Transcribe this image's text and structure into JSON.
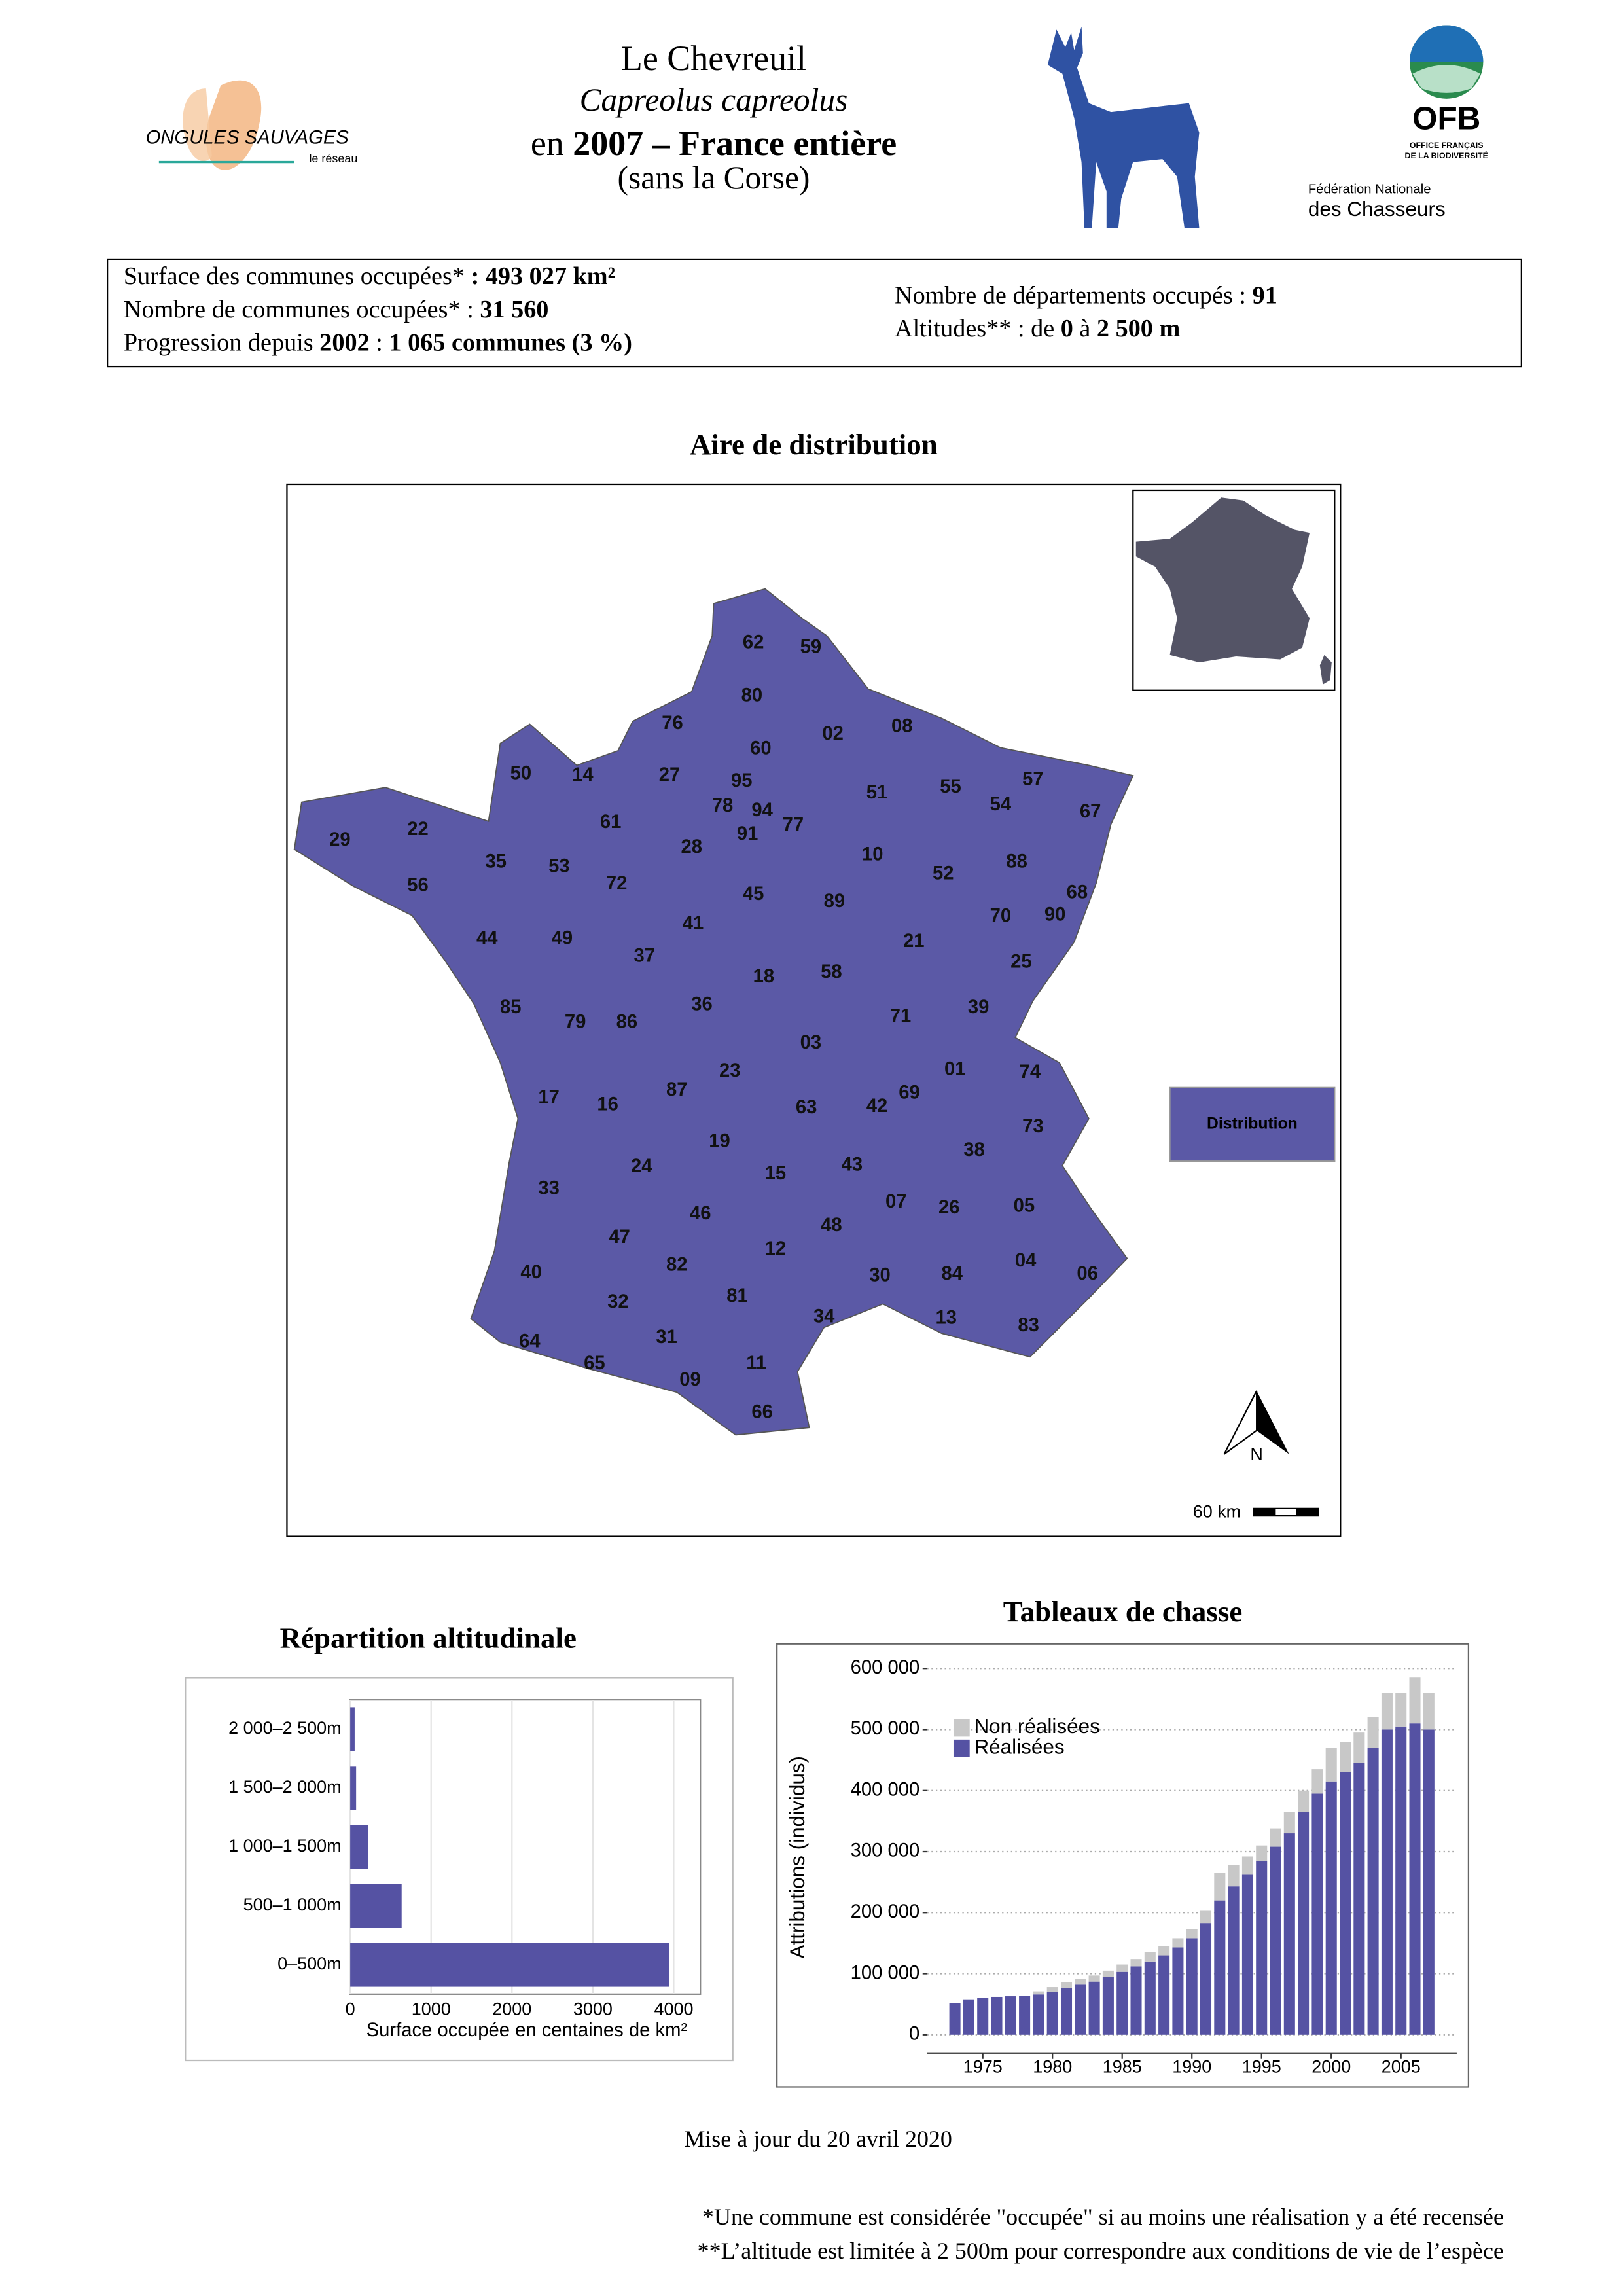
{
  "header": {
    "title": "Le Chevreuil",
    "species": "Capreolus capreolus",
    "line3": [
      {
        "text": "en ",
        "bold": false
      },
      {
        "text": "2007 – France entière",
        "bold": true
      }
    ],
    "subtitle": "(sans la Corse)",
    "logo_left": "ONGULES SAUVAGES",
    "logo_left_sub": "le réseau",
    "logo_ofb": "OFB",
    "logo_ofb_sub1": "OFFICE FRANÇAIS",
    "logo_ofb_sub2": "DE LA BIODIVERSITÉ",
    "logo_fnc1": "Fédération Nationale",
    "logo_fnc2": "des Chasseurs"
  },
  "info": {
    "left": [
      [
        {
          "text": "Surface des communes occupées* ",
          "bold": false
        },
        {
          "text": ": 493 027 km²",
          "bold": true
        }
      ],
      [
        {
          "text": "Nombre de communes occupées* : ",
          "bold": false
        },
        {
          "text": "31 560",
          "bold": true
        }
      ],
      [
        {
          "text": "Progression depuis ",
          "bold": false
        },
        {
          "text": "2002",
          "bold": true
        },
        {
          "text": " : ",
          "bold": false
        },
        {
          "text": "1 065 communes (3 %)",
          "bold": true
        }
      ]
    ],
    "right": [
      [
        {
          "text": "Nombre de départements occupés : ",
          "bold": false
        },
        {
          "text": "91",
          "bold": true
        }
      ],
      [
        {
          "text": "Altitudes** : de ",
          "bold": false
        },
        {
          "text": "0",
          "bold": true
        },
        {
          "text": " à ",
          "bold": false
        },
        {
          "text": "2 500 m",
          "bold": true
        }
      ]
    ]
  },
  "map": {
    "title": "Aire de distribution",
    "legend": "Distribution",
    "color": "#5b59a6",
    "north": "N",
    "scale": "60 km",
    "departments": [
      "62",
      "59",
      "80",
      "76",
      "02",
      "08",
      "60",
      "50",
      "14",
      "27",
      "95",
      "51",
      "55",
      "57",
      "54",
      "67",
      "78",
      "94",
      "77",
      "91",
      "61",
      "29",
      "22",
      "35",
      "53",
      "28",
      "10",
      "52",
      "88",
      "56",
      "72",
      "45",
      "89",
      "68",
      "70",
      "90",
      "41",
      "44",
      "49",
      "21",
      "37",
      "25",
      "18",
      "58",
      "85",
      "79",
      "86",
      "36",
      "71",
      "39",
      "03",
      "01",
      "74",
      "23",
      "87",
      "17",
      "16",
      "69",
      "63",
      "42",
      "73",
      "19",
      "38",
      "24",
      "15",
      "43",
      "07",
      "26",
      "05",
      "46",
      "48",
      "33",
      "47",
      "12",
      "82",
      "30",
      "84",
      "04",
      "06",
      "40",
      "32",
      "81",
      "34",
      "13",
      "83",
      "64",
      "31",
      "65",
      "09",
      "11",
      "66"
    ]
  },
  "chart_data": [
    {
      "type": "barh",
      "title": "Répartition altitudinale",
      "x_label": "Surface occupée en centaines de km²",
      "categories": [
        "0–500m",
        "500–1 000m",
        "1 000–1 500m",
        "1 500–2 000m",
        "2 000–2 500m"
      ],
      "values": [
        3945,
        636,
        218,
        73,
        55
      ],
      "color": "#5552a3",
      "xlim": [
        0,
        4330
      ],
      "xticks": [
        0,
        1000,
        2000,
        3000,
        4000
      ],
      "grid": true
    },
    {
      "type": "stacked_bar",
      "title": "Tableaux de chasse",
      "y_label": "Attributions (individus)",
      "x": [
        1973,
        1974,
        1975,
        1976,
        1977,
        1978,
        1979,
        1980,
        1981,
        1982,
        1983,
        1984,
        1985,
        1986,
        1987,
        1988,
        1989,
        1990,
        1991,
        1992,
        1993,
        1994,
        1995,
        1996,
        1997,
        1998,
        1999,
        2000,
        2001,
        2002,
        2003,
        2004,
        2005,
        2006,
        2007
      ],
      "series": [
        {
          "name": "Réalisées",
          "color": "#5552a3",
          "values": [
            52000,
            58000,
            60000,
            62000,
            63000,
            64000,
            66000,
            70000,
            76000,
            82000,
            87000,
            95000,
            103000,
            112000,
            120000,
            130000,
            143000,
            158000,
            183000,
            220000,
            243000,
            262000,
            285000,
            308000,
            330000,
            365000,
            395000,
            415000,
            430000,
            445000,
            470000,
            500000,
            505000,
            510000,
            500000
          ]
        },
        {
          "name": "Non réalisées",
          "color": "#c8c8c8",
          "values": [
            0,
            0,
            0,
            0,
            0,
            0,
            5000,
            8000,
            10000,
            10000,
            10000,
            10000,
            12000,
            12000,
            15000,
            15000,
            15000,
            15000,
            20000,
            45000,
            35000,
            30000,
            25000,
            30000,
            35000,
            35000,
            40000,
            55000,
            50000,
            50000,
            50000,
            60000,
            55000,
            75000,
            60000
          ]
        }
      ],
      "xlim": [
        1971,
        2009
      ],
      "xticks": [
        1975,
        1980,
        1985,
        1990,
        1995,
        2000,
        2005
      ],
      "ylim": [
        -30000,
        633000
      ],
      "yticks": [
        0,
        {
          "value": 100000,
          "label": "100 000"
        },
        {
          "value": 200000,
          "label": "200 000"
        },
        {
          "value": 300000,
          "label": "300 000"
        },
        {
          "value": 400000,
          "label": "400 000"
        },
        {
          "value": 500000,
          "label": "500 000"
        },
        {
          "value": 600000,
          "label": "600 000"
        }
      ],
      "grid": true
    }
  ],
  "footer": {
    "update": "Mise à jour du 20 avril 2020",
    "note1": "*Une commune est considérée \"occupée\" si au moins une réalisation y a été recensée",
    "note2": "**L’altitude est limitée à 2 500m pour correspondre aux conditions de vie de l’espèce"
  }
}
